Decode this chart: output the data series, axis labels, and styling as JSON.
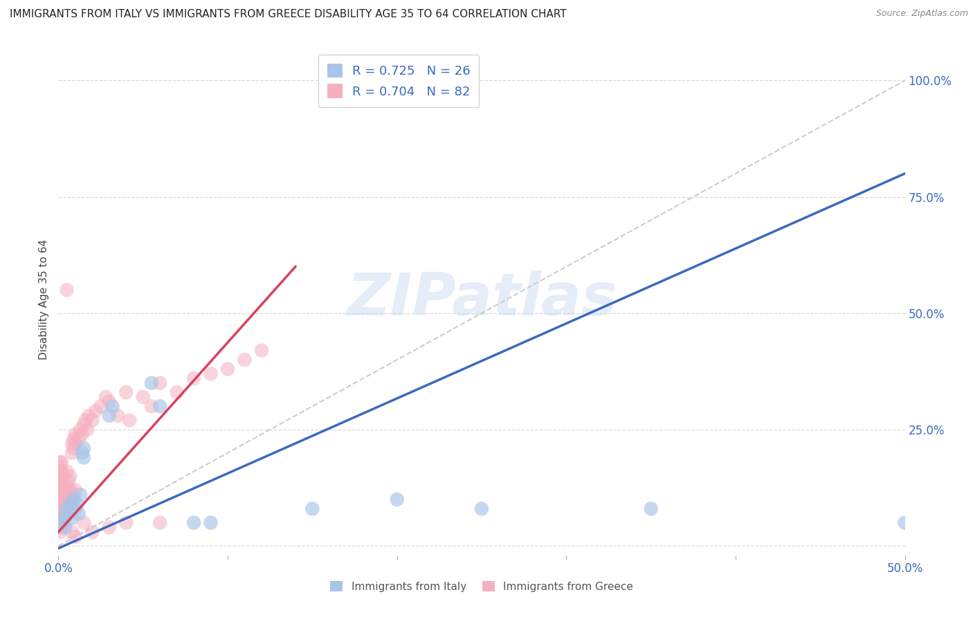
{
  "title": "IMMIGRANTS FROM ITALY VS IMMIGRANTS FROM GREECE DISABILITY AGE 35 TO 64 CORRELATION CHART",
  "source": "Source: ZipAtlas.com",
  "ylabel": "Disability Age 35 to 64",
  "xlim": [
    0.0,
    0.5
  ],
  "ylim": [
    -0.02,
    1.08
  ],
  "xticks": [
    0.0,
    0.1,
    0.2,
    0.3,
    0.4,
    0.5
  ],
  "xticklabels": [
    "0.0%",
    "",
    "",
    "",
    "",
    "50.0%"
  ],
  "yticks": [
    0.0,
    0.25,
    0.5,
    0.75,
    1.0
  ],
  "yticklabels": [
    "",
    "25.0%",
    "50.0%",
    "75.0%",
    "100.0%"
  ],
  "italy_color": "#a8c4e8",
  "greece_color": "#f5b0c0",
  "italy_line_color": "#3a6abf",
  "greece_line_color": "#d94060",
  "italy_R": 0.725,
  "italy_N": 26,
  "greece_R": 0.704,
  "greece_N": 82,
  "legend_label_italy": "Immigrants from Italy",
  "legend_label_greece": "Immigrants from Greece",
  "watermark_text": "ZIPatlas",
  "italy_points": [
    [
      0.002,
      0.05
    ],
    [
      0.003,
      0.06
    ],
    [
      0.004,
      0.04
    ],
    [
      0.005,
      0.08
    ],
    [
      0.006,
      0.07
    ],
    [
      0.007,
      0.09
    ],
    [
      0.008,
      0.06
    ],
    [
      0.009,
      0.1
    ],
    [
      0.01,
      0.08
    ],
    [
      0.011,
      0.09
    ],
    [
      0.012,
      0.07
    ],
    [
      0.013,
      0.11
    ],
    [
      0.014,
      0.2
    ],
    [
      0.015,
      0.21
    ],
    [
      0.015,
      0.19
    ],
    [
      0.03,
      0.28
    ],
    [
      0.032,
      0.3
    ],
    [
      0.055,
      0.35
    ],
    [
      0.06,
      0.3
    ],
    [
      0.08,
      0.05
    ],
    [
      0.09,
      0.05
    ],
    [
      0.15,
      0.08
    ],
    [
      0.2,
      0.1
    ],
    [
      0.25,
      0.08
    ],
    [
      0.35,
      0.08
    ],
    [
      0.5,
      0.05
    ]
  ],
  "greece_points": [
    [
      0.001,
      0.03
    ],
    [
      0.001,
      0.04
    ],
    [
      0.001,
      0.05
    ],
    [
      0.001,
      0.06
    ],
    [
      0.001,
      0.07
    ],
    [
      0.001,
      0.08
    ],
    [
      0.001,
      0.09
    ],
    [
      0.001,
      0.1
    ],
    [
      0.001,
      0.11
    ],
    [
      0.001,
      0.12
    ],
    [
      0.001,
      0.13
    ],
    [
      0.001,
      0.14
    ],
    [
      0.001,
      0.15
    ],
    [
      0.001,
      0.16
    ],
    [
      0.001,
      0.17
    ],
    [
      0.001,
      0.18
    ],
    [
      0.002,
      0.04
    ],
    [
      0.002,
      0.06
    ],
    [
      0.002,
      0.08
    ],
    [
      0.002,
      0.1
    ],
    [
      0.002,
      0.12
    ],
    [
      0.002,
      0.14
    ],
    [
      0.002,
      0.16
    ],
    [
      0.002,
      0.18
    ],
    [
      0.003,
      0.05
    ],
    [
      0.003,
      0.07
    ],
    [
      0.003,
      0.1
    ],
    [
      0.003,
      0.12
    ],
    [
      0.003,
      0.15
    ],
    [
      0.004,
      0.06
    ],
    [
      0.004,
      0.09
    ],
    [
      0.004,
      0.12
    ],
    [
      0.005,
      0.07
    ],
    [
      0.005,
      0.1
    ],
    [
      0.005,
      0.13
    ],
    [
      0.005,
      0.16
    ],
    [
      0.006,
      0.08
    ],
    [
      0.006,
      0.11
    ],
    [
      0.006,
      0.14
    ],
    [
      0.007,
      0.09
    ],
    [
      0.007,
      0.12
    ],
    [
      0.007,
      0.15
    ],
    [
      0.008,
      0.1
    ],
    [
      0.008,
      0.2
    ],
    [
      0.008,
      0.22
    ],
    [
      0.009,
      0.11
    ],
    [
      0.009,
      0.21
    ],
    [
      0.009,
      0.23
    ],
    [
      0.01,
      0.12
    ],
    [
      0.01,
      0.22
    ],
    [
      0.01,
      0.24
    ],
    [
      0.012,
      0.23
    ],
    [
      0.013,
      0.25
    ],
    [
      0.014,
      0.24
    ],
    [
      0.015,
      0.26
    ],
    [
      0.016,
      0.27
    ],
    [
      0.017,
      0.25
    ],
    [
      0.018,
      0.28
    ],
    [
      0.02,
      0.27
    ],
    [
      0.022,
      0.29
    ],
    [
      0.025,
      0.3
    ],
    [
      0.028,
      0.32
    ],
    [
      0.03,
      0.31
    ],
    [
      0.035,
      0.28
    ],
    [
      0.04,
      0.33
    ],
    [
      0.042,
      0.27
    ],
    [
      0.05,
      0.32
    ],
    [
      0.055,
      0.3
    ],
    [
      0.06,
      0.35
    ],
    [
      0.07,
      0.33
    ],
    [
      0.08,
      0.36
    ],
    [
      0.09,
      0.37
    ],
    [
      0.1,
      0.38
    ],
    [
      0.11,
      0.4
    ],
    [
      0.12,
      0.42
    ],
    [
      0.01,
      0.02
    ],
    [
      0.02,
      0.03
    ],
    [
      0.03,
      0.04
    ],
    [
      0.005,
      0.55
    ],
    [
      0.008,
      0.03
    ],
    [
      0.015,
      0.05
    ],
    [
      0.04,
      0.05
    ],
    [
      0.06,
      0.05
    ]
  ],
  "italy_line": {
    "x0": 0.0,
    "x1": 0.5,
    "y0": -0.005,
    "y1": 0.8
  },
  "greece_line": {
    "x0": 0.0,
    "x1": 0.14,
    "y0": 0.03,
    "y1": 0.6
  },
  "ref_line": {
    "x0": 0.0,
    "x1": 0.505,
    "y0": 0.0,
    "y1": 1.01
  },
  "background_color": "#ffffff",
  "grid_color": "#d8d8d8",
  "title_fontsize": 11,
  "axis_label_fontsize": 11,
  "tick_fontsize": 12,
  "legend_fontsize": 13
}
